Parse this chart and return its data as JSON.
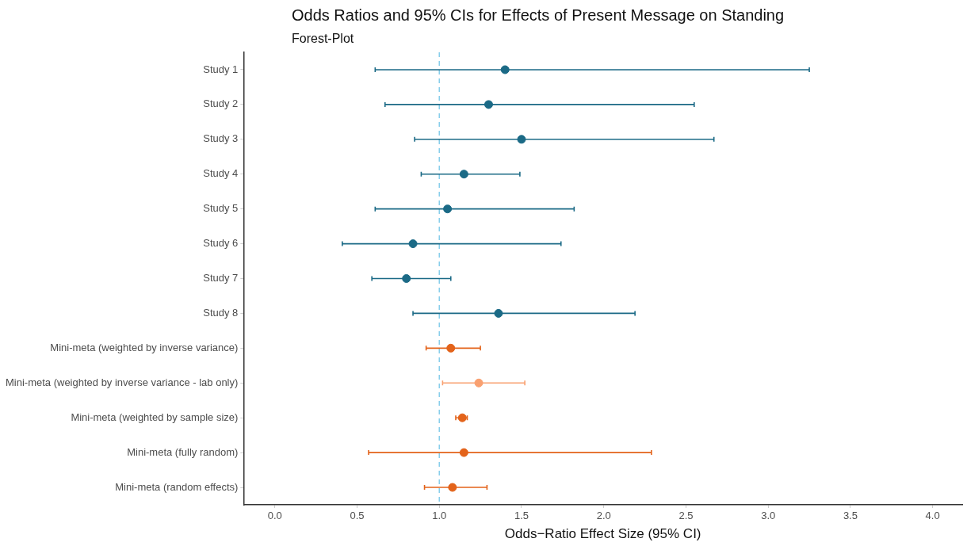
{
  "chart_data": {
    "type": "scatter",
    "orientation": "horizontal",
    "title": "Odds Ratios and 95% CIs for Effects of Present Message on Standing",
    "subtitle": "Forest-Plot",
    "xlabel": "Odds−Ratio Effect Size (95% CI)",
    "categories": [
      "Study 1",
      "Study 2",
      "Study 3",
      "Study 4",
      "Study 5",
      "Study 6",
      "Study 7",
      "Study 8",
      "Mini-meta (weighted by inverse variance)",
      "Mini-meta (weighted by inverse variance - lab only)",
      "Mini-meta (weighted by sample size)",
      "Mini-meta (fully random)",
      "Mini-meta (random effects)"
    ],
    "values": [
      1.4,
      1.3,
      1.5,
      1.15,
      1.05,
      0.84,
      0.8,
      1.36,
      1.07,
      1.24,
      1.14,
      1.15,
      1.08
    ],
    "errors": [
      [
        0.61,
        3.25
      ],
      [
        0.67,
        2.55
      ],
      [
        0.85,
        2.67
      ],
      [
        0.89,
        1.49
      ],
      [
        0.61,
        1.82
      ],
      [
        0.41,
        1.74
      ],
      [
        0.59,
        1.07
      ],
      [
        0.84,
        2.19
      ],
      [
        0.92,
        1.25
      ],
      [
        1.02,
        1.52
      ],
      [
        1.1,
        1.17
      ],
      [
        0.57,
        2.29
      ],
      [
        0.91,
        1.29
      ]
    ],
    "colors": [
      "#1b6a86",
      "#1b6a86",
      "#1b6a86",
      "#1b6a86",
      "#1b6a86",
      "#1b6a86",
      "#1b6a86",
      "#1b6a86",
      "#e3631a",
      "#f9a070",
      "#e3631a",
      "#e3631a",
      "#e3631a"
    ],
    "xlim": [
      -0.19,
      4.18
    ],
    "xticks": [
      {
        "value": 0,
        "label": "0.0"
      },
      {
        "value": 0.5,
        "label": "0.5"
      },
      {
        "value": 1,
        "label": "1.0"
      },
      {
        "value": 1.5,
        "label": "1.5"
      },
      {
        "value": 2,
        "label": "2.0"
      },
      {
        "value": 2.5,
        "label": "2.5"
      },
      {
        "value": 3,
        "label": "3.0"
      },
      {
        "value": 3.5,
        "label": "3.5"
      },
      {
        "value": 4,
        "label": "4.0"
      }
    ],
    "ref_lines": [
      {
        "axis": "x",
        "value": 1,
        "color": "#87ceeb",
        "line_style": "dashed"
      }
    ],
    "grid": false,
    "legend": false,
    "marker": "circle"
  }
}
